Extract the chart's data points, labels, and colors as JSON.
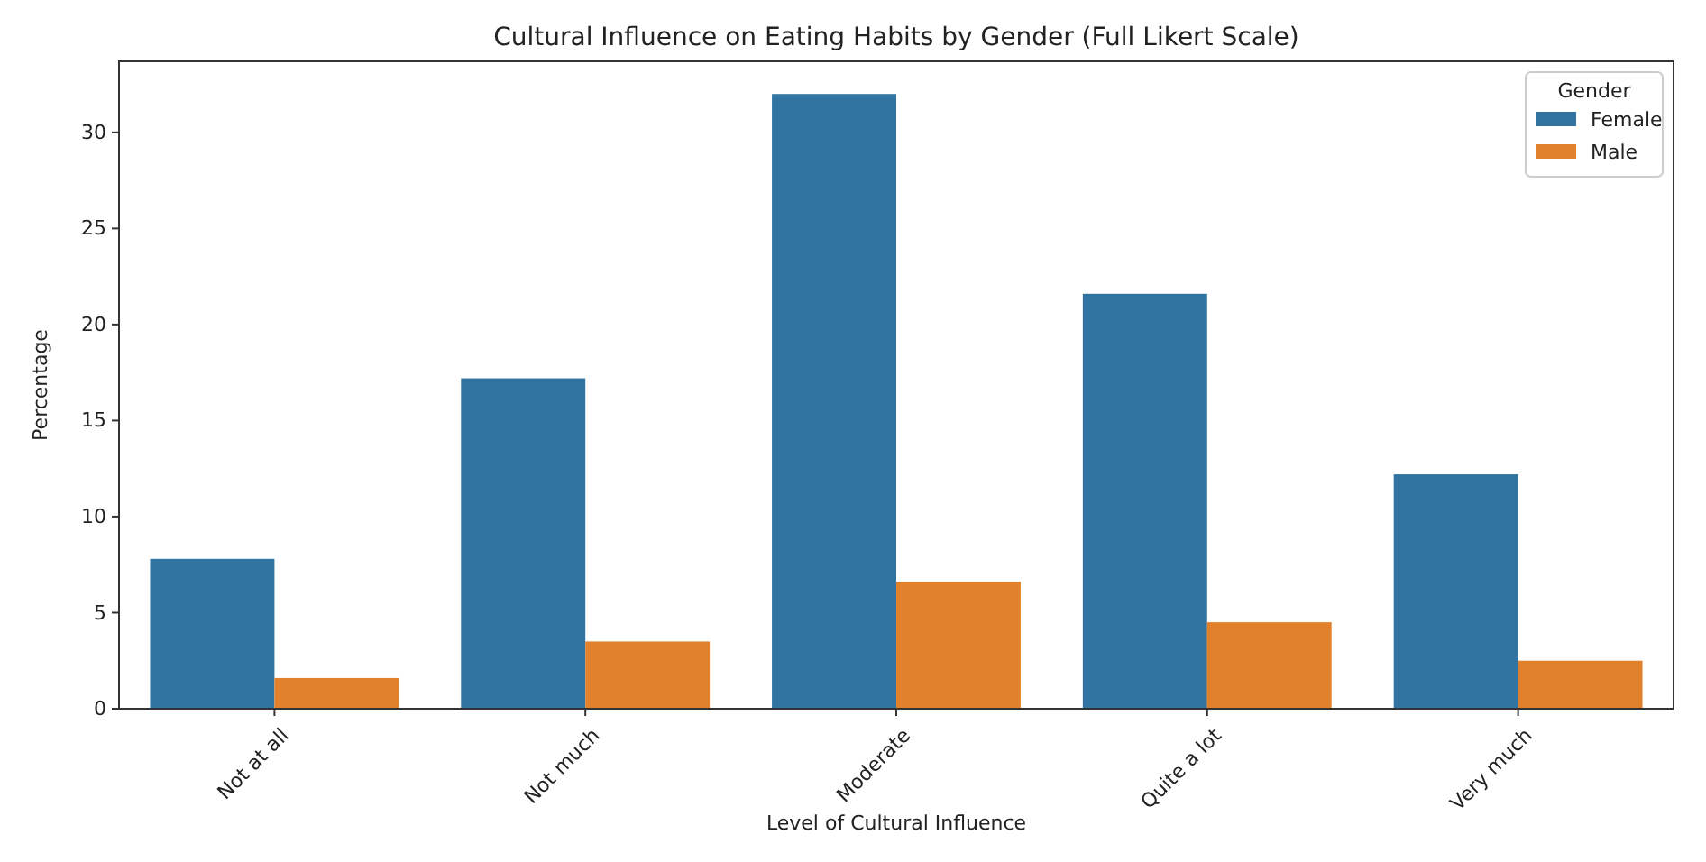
{
  "chart_data": {
    "type": "bar",
    "title": "Cultural Influence on Eating Habits by Gender (Full Likert Scale)",
    "xlabel": "Level of Cultural Influence",
    "ylabel": "Percentage",
    "legend_title": "Gender",
    "categories": [
      "Not at all",
      "Not much",
      "Moderate",
      "Quite a lot",
      "Very much"
    ],
    "series": [
      {
        "name": "Female",
        "color": "#3274a1",
        "values": [
          7.8,
          17.2,
          32.0,
          21.6,
          12.2
        ]
      },
      {
        "name": "Male",
        "color": "#e1812c",
        "values": [
          1.6,
          3.5,
          6.6,
          4.5,
          2.5
        ]
      }
    ],
    "ylim": [
      0,
      33.7
    ],
    "yticks": [
      0,
      5,
      10,
      15,
      20,
      25,
      30
    ],
    "legend": "top right",
    "grid": false
  }
}
